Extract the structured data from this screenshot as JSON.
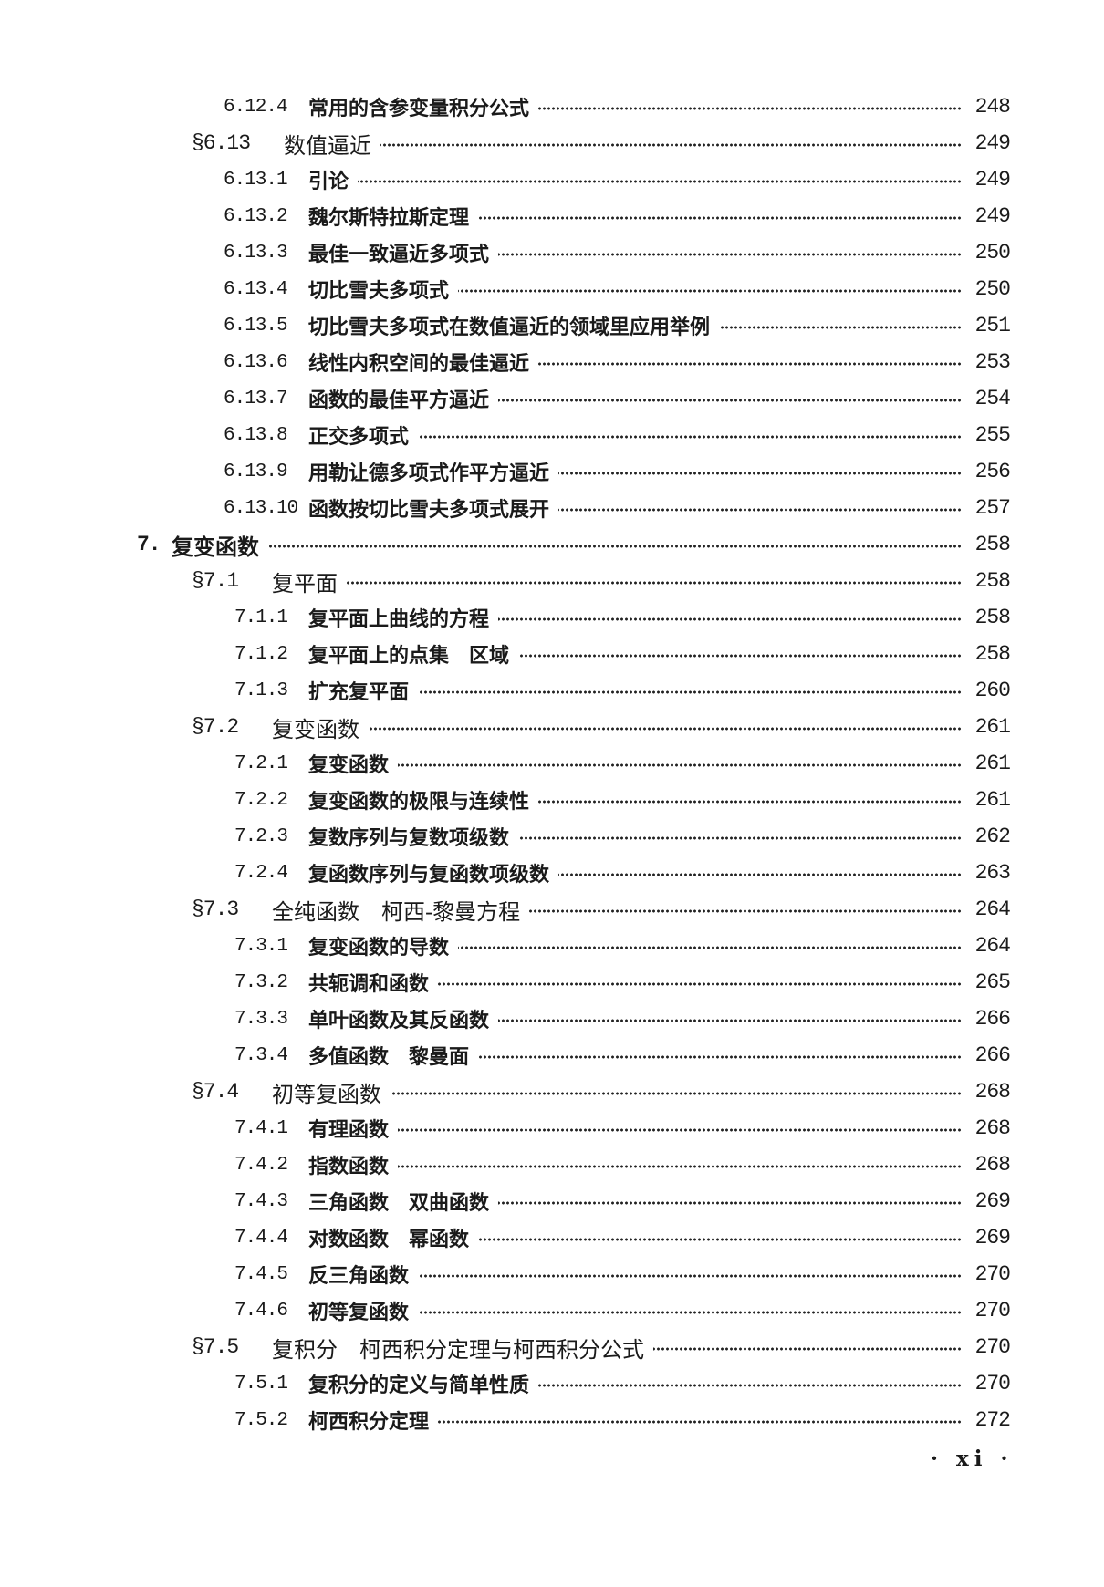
{
  "entries": [
    {
      "level": "sub",
      "num": "6.12.4",
      "title": "常用的含参变量积分公式",
      "page": "248"
    },
    {
      "level": "sec",
      "num": "§6.13",
      "title": "数值逼近",
      "page": "249"
    },
    {
      "level": "sub",
      "num": "6.13.1",
      "title": "引论",
      "page": "249"
    },
    {
      "level": "sub",
      "num": "6.13.2",
      "title": "魏尔斯特拉斯定理",
      "page": "249"
    },
    {
      "level": "sub",
      "num": "6.13.3",
      "title": "最佳一致逼近多项式",
      "page": "250"
    },
    {
      "level": "sub",
      "num": "6.13.4",
      "title": "切比雪夫多项式",
      "page": "250"
    },
    {
      "level": "sub",
      "num": "6.13.5",
      "title": "切比雪夫多项式在数值逼近的领域里应用举例",
      "page": "251"
    },
    {
      "level": "sub",
      "num": "6.13.6",
      "title": "线性内积空间的最佳逼近",
      "page": "253"
    },
    {
      "level": "sub",
      "num": "6.13.7",
      "title": "函数的最佳平方逼近",
      "page": "254"
    },
    {
      "level": "sub",
      "num": "6.13.8",
      "title": "正交多项式",
      "page": "255"
    },
    {
      "level": "sub",
      "num": "6.13.9",
      "title": "用勒让德多项式作平方逼近",
      "page": "256"
    },
    {
      "level": "sub",
      "num": "6.13.10",
      "title": "函数按切比雪夫多项式展开",
      "page": "257"
    },
    {
      "level": "chap",
      "num": "7.",
      "title": "复变函数",
      "page": "258"
    },
    {
      "level": "sec",
      "num": "§7.1",
      "title": "复平面",
      "page": "258"
    },
    {
      "level": "sub",
      "num": "7.1.1",
      "title": "复平面上曲线的方程",
      "page": "258"
    },
    {
      "level": "sub",
      "num": "7.1.2",
      "title": "复平面上的点集　区域",
      "page": "258"
    },
    {
      "level": "sub",
      "num": "7.1.3",
      "title": "扩充复平面",
      "page": "260"
    },
    {
      "level": "sec",
      "num": "§7.2",
      "title": "复变函数",
      "page": "261"
    },
    {
      "level": "sub",
      "num": "7.2.1",
      "title": "复变函数",
      "page": "261"
    },
    {
      "level": "sub",
      "num": "7.2.2",
      "title": "复变函数的极限与连续性",
      "page": "261"
    },
    {
      "level": "sub",
      "num": "7.2.3",
      "title": "复数序列与复数项级数",
      "page": "262"
    },
    {
      "level": "sub",
      "num": "7.2.4",
      "title": "复函数序列与复函数项级数",
      "page": "263"
    },
    {
      "level": "sec",
      "num": "§7.3",
      "title": "全纯函数　柯西-黎曼方程",
      "page": "264"
    },
    {
      "level": "sub",
      "num": "7.3.1",
      "title": "复变函数的导数",
      "page": "264"
    },
    {
      "level": "sub",
      "num": "7.3.2",
      "title": "共轭调和函数",
      "page": "265"
    },
    {
      "level": "sub",
      "num": "7.3.3",
      "title": "单叶函数及其反函数",
      "page": "266"
    },
    {
      "level": "sub",
      "num": "7.3.4",
      "title": "多值函数　黎曼面",
      "page": "266"
    },
    {
      "level": "sec",
      "num": "§7.4",
      "title": "初等复函数",
      "page": "268"
    },
    {
      "level": "sub",
      "num": "7.4.1",
      "title": "有理函数",
      "page": "268"
    },
    {
      "level": "sub",
      "num": "7.4.2",
      "title": "指数函数",
      "page": "268"
    },
    {
      "level": "sub",
      "num": "7.4.3",
      "title": "三角函数　双曲函数",
      "page": "269"
    },
    {
      "level": "sub",
      "num": "7.4.4",
      "title": "对数函数　幂函数",
      "page": "269"
    },
    {
      "level": "sub",
      "num": "7.4.5",
      "title": "反三角函数",
      "page": "270"
    },
    {
      "level": "sub",
      "num": "7.4.6",
      "title": "初等复函数",
      "page": "270"
    },
    {
      "level": "sec",
      "num": "§7.5",
      "title": "复积分　柯西积分定理与柯西积分公式",
      "page": "270"
    },
    {
      "level": "sub",
      "num": "7.5.1",
      "title": "复积分的定义与简单性质",
      "page": "270"
    },
    {
      "level": "sub",
      "num": "7.5.2",
      "title": "柯西积分定理",
      "page": "272"
    }
  ],
  "footer": {
    "page_label": "· xi ·"
  }
}
